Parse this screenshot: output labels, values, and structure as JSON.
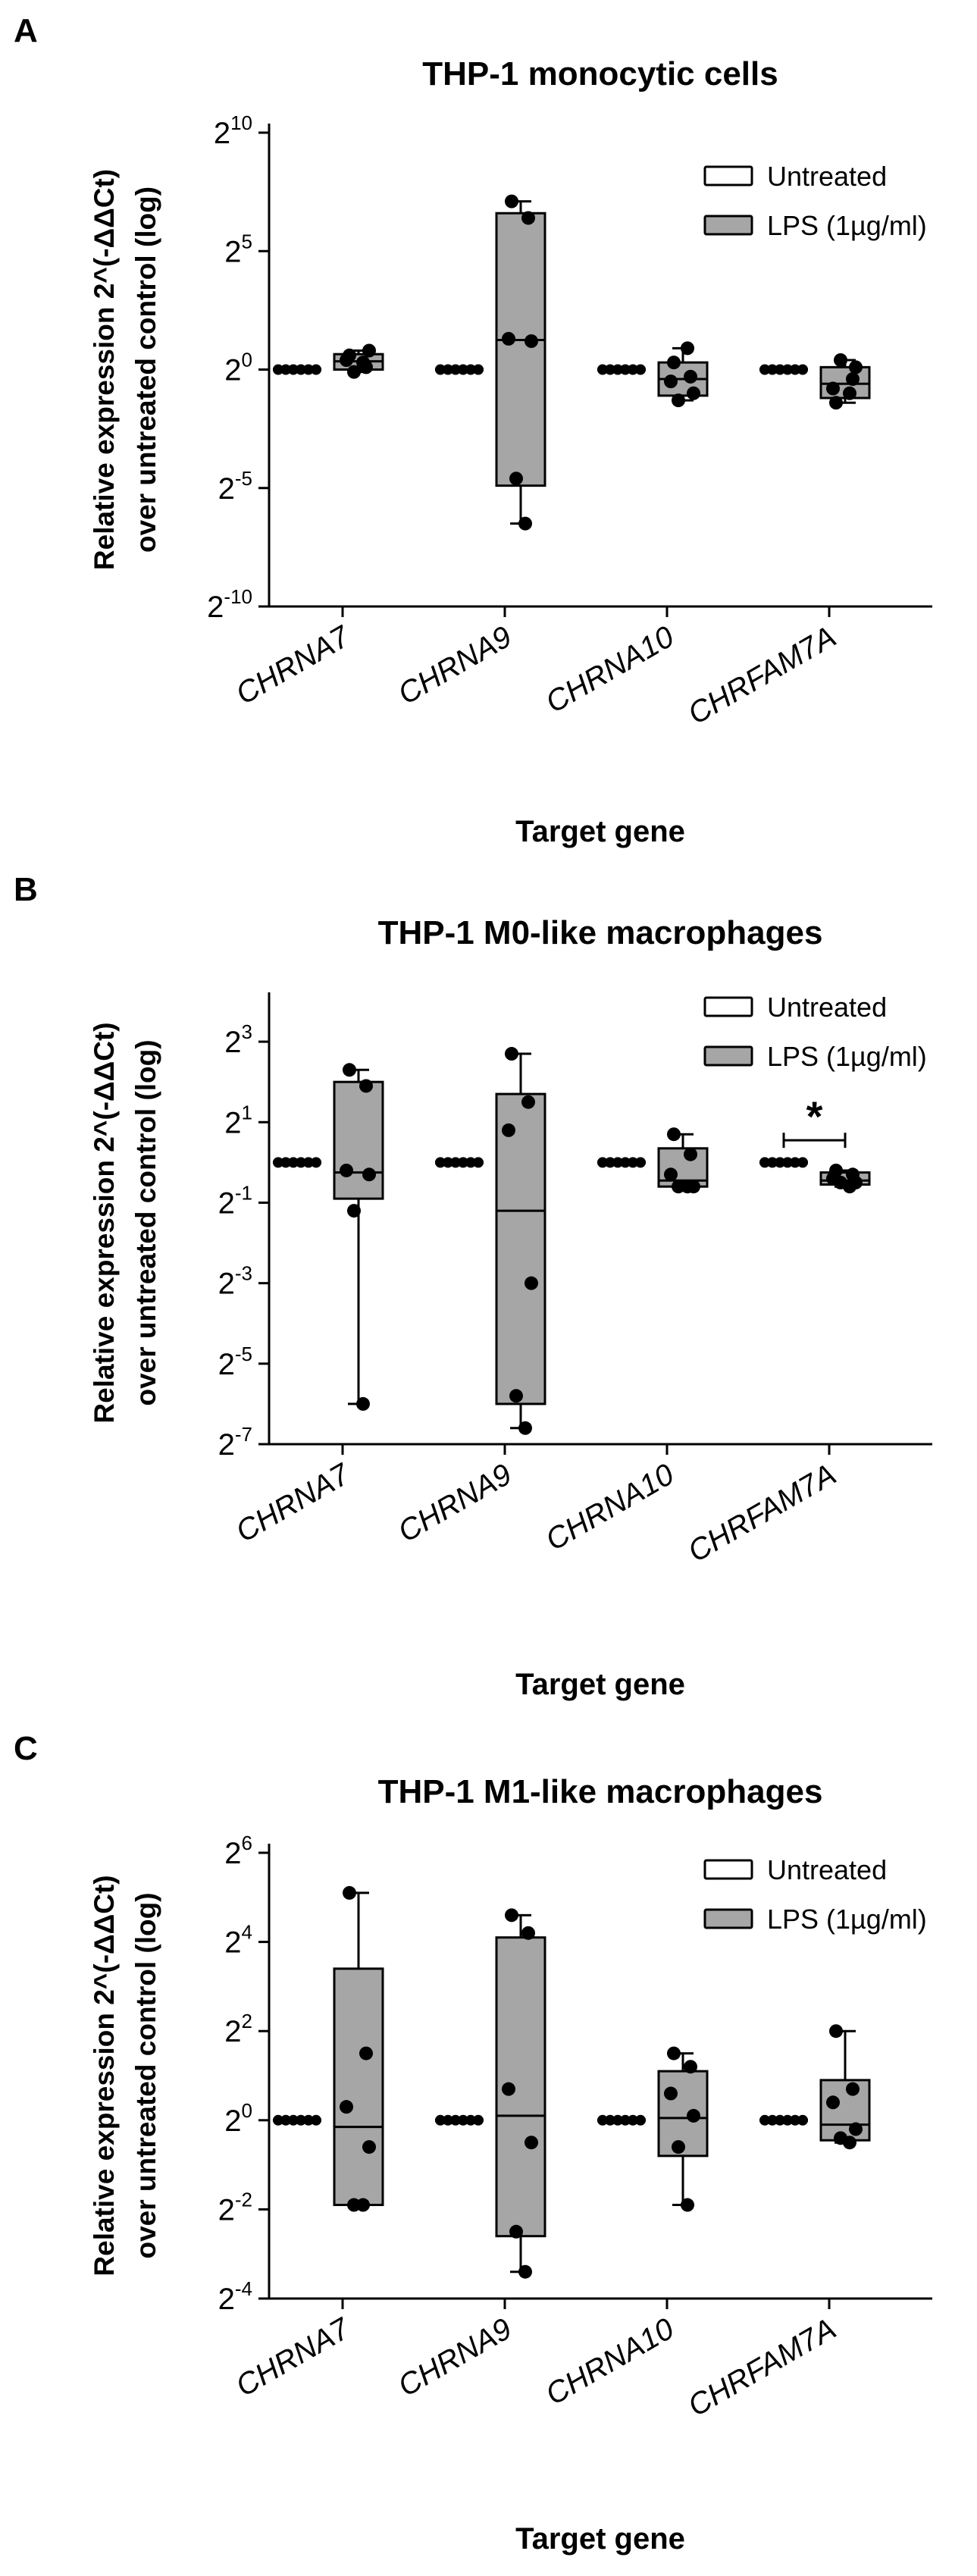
{
  "panels": [
    {
      "letter": "A",
      "ylabel_line1": "Relative expression 2^(-ΔΔCt)",
      "ylabel_line2": "over untreated control (log)",
      "xlabel": "Target gene",
      "legend": [
        "Untreated",
        "LPS (1µg/ml)"
      ],
      "significance": ""
    },
    {
      "letter": "B",
      "ylabel_line1": "Relative expression 2^(-ΔΔCt)",
      "ylabel_line2": "over untreated control (log)",
      "xlabel": "Target gene",
      "legend": [
        "Untreated",
        "LPS (1µg/ml)"
      ],
      "significance": "*"
    },
    {
      "letter": "C",
      "ylabel_line1": "Relative expression 2^(-ΔΔCt)",
      "ylabel_line2": "over untreated control (log)",
      "xlabel": "Target gene",
      "legend": [
        "Untreated",
        "LPS (1µg/ml)"
      ],
      "significance": ""
    }
  ],
  "chart_data": [
    {
      "type": "box",
      "title": "THP-1 monocytic cells",
      "xlabel": "Target gene",
      "ylabel": "Relative expression 2^(-ΔΔCt) over untreated control (log)",
      "yscale": "log2",
      "ylim_exp": [
        -10,
        10
      ],
      "yticks_exp": [
        -10,
        -5,
        0,
        5,
        10
      ],
      "categories": [
        "CHRNA7",
        "CHRNA9",
        "CHRNA10",
        "CHRFAM7A"
      ],
      "legend_position": "top-right",
      "colors": {
        "untreated": "#ffffff",
        "lps": "#a6a6a6"
      },
      "series": [
        {
          "name": "Untreated",
          "log2_values": [
            [
              0,
              0,
              0,
              0,
              0,
              0
            ],
            [
              0,
              0,
              0,
              0,
              0,
              0
            ],
            [
              0,
              0,
              0,
              0,
              0,
              0
            ],
            [
              0,
              0,
              0,
              0,
              0,
              0
            ]
          ]
        },
        {
          "name": "LPS (1µg/ml)",
          "log2_values": [
            [
              0.6,
              0.1,
              0.4,
              0.8,
              -0.1,
              0.3
            ],
            [
              7.1,
              6.4,
              1.3,
              1.2,
              -4.6,
              -6.5
            ],
            [
              0.3,
              -0.3,
              -0.5,
              -1.0,
              -1.3,
              0.9
            ],
            [
              -1.4,
              -0.4,
              -0.8,
              0.1,
              0.4,
              -1.0
            ]
          ],
          "box": [
            {
              "min": -0.1,
              "q1": 0.0,
              "median": 0.35,
              "q3": 0.65,
              "max": 0.8
            },
            {
              "min": -6.5,
              "q1": -4.9,
              "median": 1.25,
              "q3": 6.6,
              "max": 7.1
            },
            {
              "min": -1.3,
              "q1": -1.1,
              "median": -0.4,
              "q3": 0.3,
              "max": 0.9
            },
            {
              "min": -1.4,
              "q1": -1.2,
              "median": -0.6,
              "q3": 0.1,
              "max": 0.4
            }
          ]
        }
      ]
    },
    {
      "type": "box",
      "title": "THP-1 M0-like macrophages",
      "xlabel": "Target gene",
      "ylabel": "Relative expression 2^(-ΔΔCt) over untreated control (log)",
      "yscale": "log2",
      "ylim_exp": [
        -7,
        4
      ],
      "yticks_exp": [
        -7,
        -5,
        -3,
        -1,
        1,
        3
      ],
      "categories": [
        "CHRNA7",
        "CHRNA9",
        "CHRNA10",
        "CHRFAM7A"
      ],
      "legend_position": "top-right",
      "colors": {
        "untreated": "#ffffff",
        "lps": "#a6a6a6"
      },
      "series": [
        {
          "name": "Untreated",
          "log2_values": [
            [
              0,
              0,
              0,
              0,
              0,
              0
            ],
            [
              0,
              0,
              0,
              0,
              0,
              0
            ],
            [
              0,
              0,
              0,
              0,
              0,
              0
            ],
            [
              0,
              0,
              0,
              0,
              0,
              0
            ]
          ]
        },
        {
          "name": "LPS (1µg/ml)",
          "log2_values": [
            [
              2.3,
              1.9,
              -0.2,
              -0.3,
              -1.2,
              -6.0
            ],
            [
              2.7,
              1.5,
              0.8,
              -3.0,
              -5.8,
              -6.6
            ],
            [
              0.7,
              0.2,
              -0.3,
              -0.6,
              -0.6,
              -0.6
            ],
            [
              -0.2,
              -0.3,
              -0.4,
              -0.5,
              -0.5,
              -0.6
            ]
          ],
          "box": [
            {
              "min": -6.0,
              "q1": -0.9,
              "median": -0.25,
              "q3": 2.0,
              "max": 2.3
            },
            {
              "min": -6.6,
              "q1": -6.0,
              "median": -1.2,
              "q3": 1.7,
              "max": 2.7
            },
            {
              "min": -0.6,
              "q1": -0.6,
              "median": -0.45,
              "q3": 0.35,
              "max": 0.7
            },
            {
              "min": -0.6,
              "q1": -0.55,
              "median": -0.45,
              "q3": -0.25,
              "max": -0.2
            }
          ]
        }
      ],
      "annotations": [
        {
          "text": "*",
          "between": [
            "Untreated",
            "LPS (1µg/ml)"
          ],
          "category": "CHRFAM7A"
        }
      ]
    },
    {
      "type": "box",
      "title": "THP-1 M1-like macrophages",
      "xlabel": "Target gene",
      "ylabel": "Relative expression 2^(-ΔΔCt) over untreated control (log)",
      "yscale": "log2",
      "ylim_exp": [
        -4,
        6
      ],
      "yticks_exp": [
        -4,
        -2,
        0,
        2,
        4,
        6
      ],
      "categories": [
        "CHRNA7",
        "CHRNA9",
        "CHRNA10",
        "CHRFAM7A"
      ],
      "legend_position": "top-right",
      "colors": {
        "untreated": "#ffffff",
        "lps": "#a6a6a6"
      },
      "series": [
        {
          "name": "Untreated",
          "log2_values": [
            [
              0,
              0,
              0,
              0,
              0,
              0
            ],
            [
              0,
              0,
              0,
              0,
              0,
              0
            ],
            [
              0,
              0,
              0,
              0,
              0,
              0
            ],
            [
              0,
              0,
              0,
              0,
              0,
              0
            ]
          ]
        },
        {
          "name": "LPS (1µg/ml)",
          "log2_values": [
            [
              5.1,
              1.5,
              0.3,
              -0.6,
              -1.9,
              -1.9
            ],
            [
              4.6,
              4.2,
              0.7,
              -0.5,
              -2.5,
              -3.4
            ],
            [
              1.5,
              1.2,
              0.6,
              0.1,
              -0.6,
              -1.9
            ],
            [
              2.0,
              0.7,
              0.4,
              -0.2,
              -0.4,
              -0.5
            ]
          ],
          "box": [
            {
              "min": -1.9,
              "q1": -1.9,
              "median": -0.15,
              "q3": 3.4,
              "max": 5.1
            },
            {
              "min": -3.4,
              "q1": -2.6,
              "median": 0.1,
              "q3": 4.1,
              "max": 4.6
            },
            {
              "min": -1.9,
              "q1": -0.8,
              "median": 0.05,
              "q3": 1.1,
              "max": 1.5
            },
            {
              "min": -0.5,
              "q1": -0.45,
              "median": -0.1,
              "q3": 0.9,
              "max": 2.0
            }
          ]
        }
      ]
    }
  ]
}
